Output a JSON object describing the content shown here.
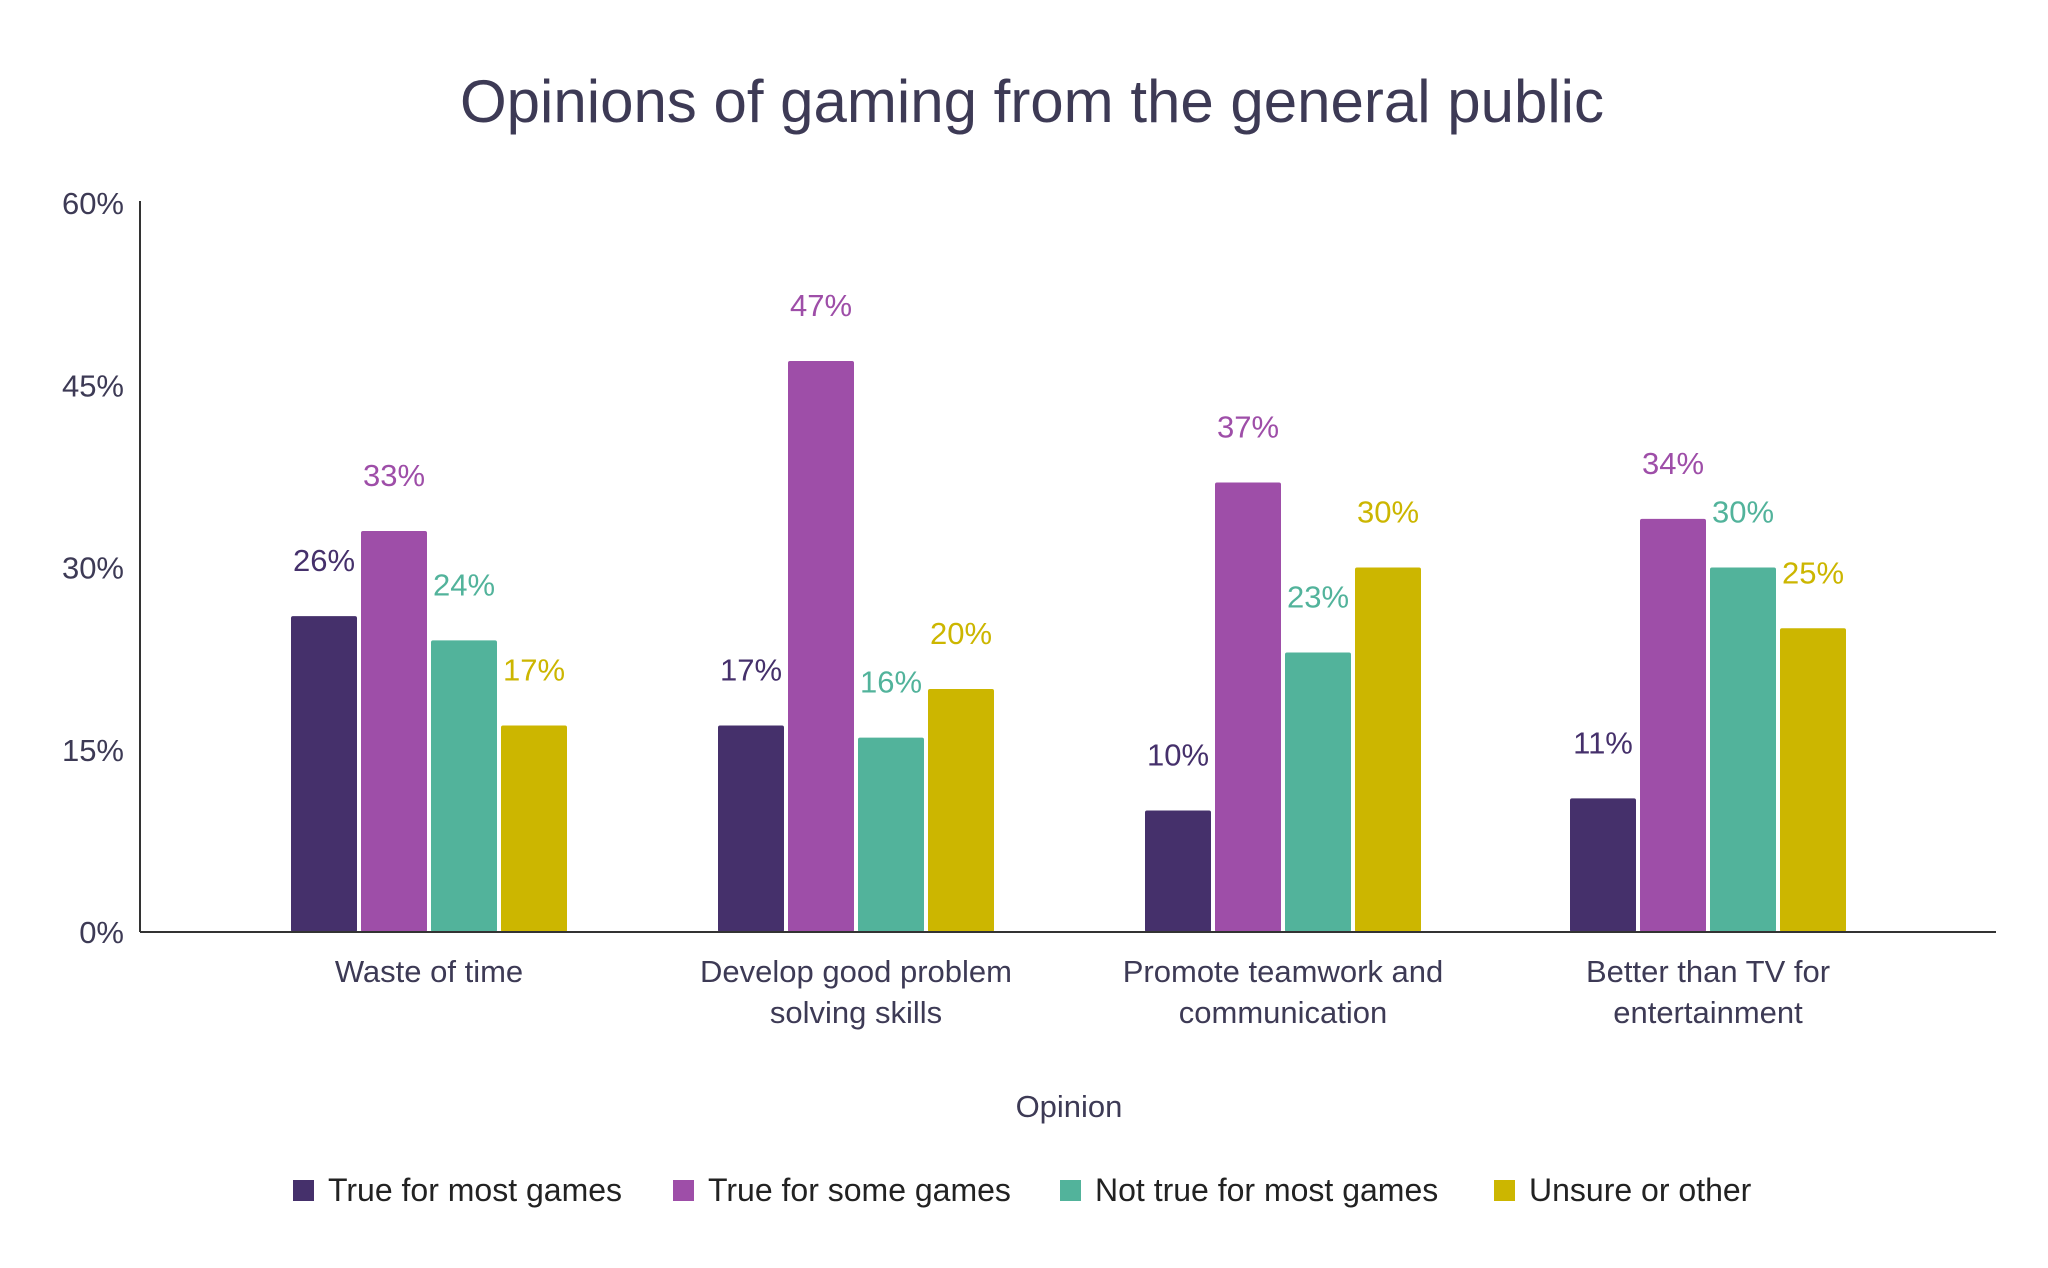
{
  "chart_data": {
    "type": "bar",
    "title": "Opinions of gaming from the general public",
    "xlabel": "Opinion",
    "ylabel": "",
    "ylim": [
      0,
      60
    ],
    "yticks": [
      "0%",
      "15%",
      "30%",
      "45%",
      "60%"
    ],
    "ytick_values": [
      0,
      15,
      30,
      45,
      60
    ],
    "grid": false,
    "legend_position": "bottom",
    "categories": [
      [
        "Waste of time"
      ],
      [
        "Develop good problem",
        "solving skills"
      ],
      [
        "Promote teamwork and",
        "communication"
      ],
      [
        "Better than TV for",
        "entertainment"
      ]
    ],
    "series": [
      {
        "name": "True for most games",
        "color": "#45306b",
        "values": [
          26,
          17,
          10,
          11
        ],
        "labels": [
          "26%",
          "17%",
          "10%",
          "11%"
        ]
      },
      {
        "name": "True for some games",
        "color": "#9e4ea8",
        "values": [
          33,
          47,
          37,
          34
        ],
        "labels": [
          "33%",
          "47%",
          "37%",
          "34%"
        ]
      },
      {
        "name": "Not true for most games",
        "color": "#52b39b",
        "values": [
          24,
          16,
          23,
          30
        ],
        "labels": [
          "24%",
          "16%",
          "23%",
          "30%"
        ]
      },
      {
        "name": "Unsure or other",
        "color": "#ccb600",
        "values": [
          17,
          20,
          30,
          25
        ],
        "labels": [
          "17%",
          "20%",
          "30%",
          "25%"
        ]
      }
    ]
  }
}
